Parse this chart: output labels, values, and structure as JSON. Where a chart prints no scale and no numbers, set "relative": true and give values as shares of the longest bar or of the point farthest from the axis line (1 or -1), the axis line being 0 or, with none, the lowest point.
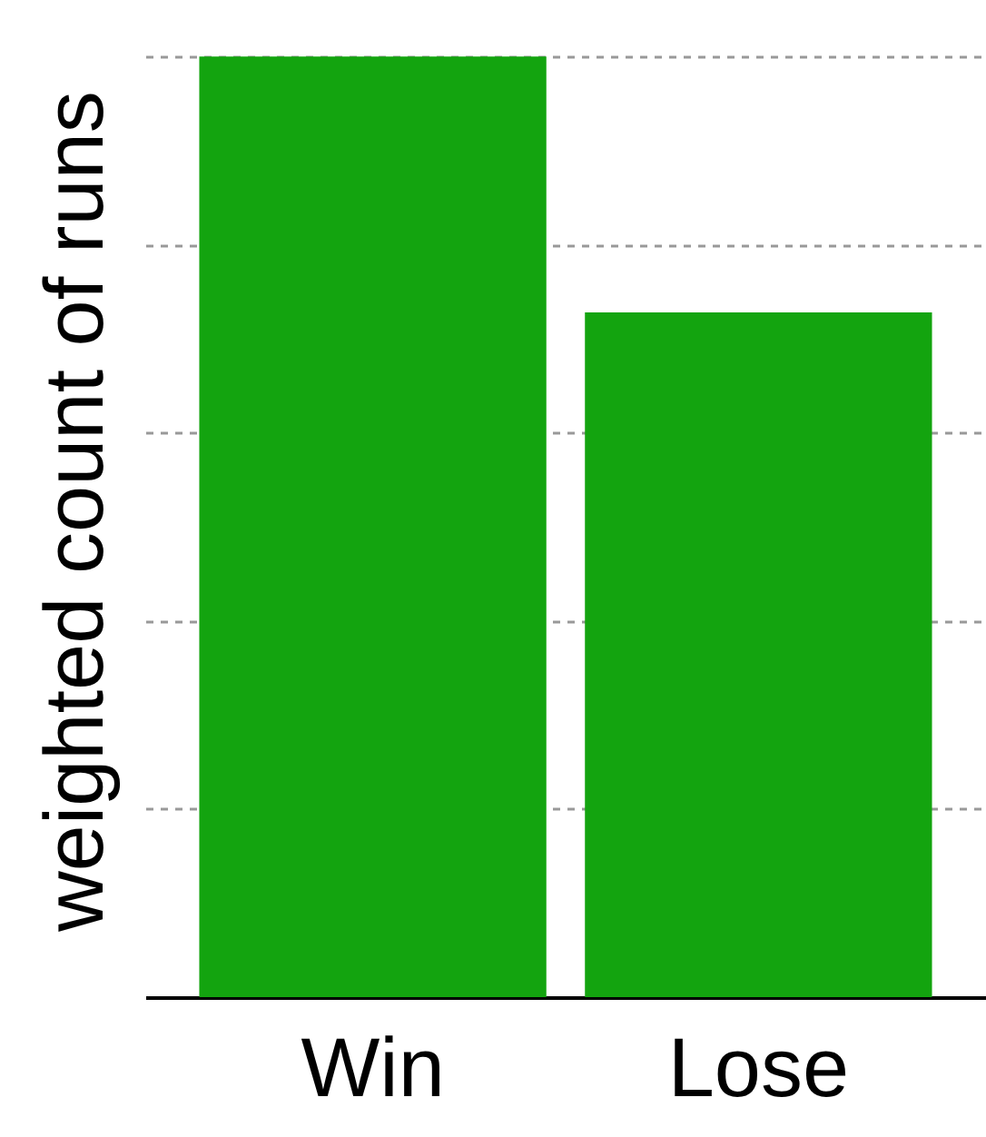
{
  "chart_data": {
    "type": "bar",
    "ylabel": "weighted count of runs",
    "categories": [
      "Win",
      "Lose"
    ],
    "values": [
      1,
      0.728
    ],
    "color": "#13a40f",
    "relative": true,
    "grid": "y"
  }
}
